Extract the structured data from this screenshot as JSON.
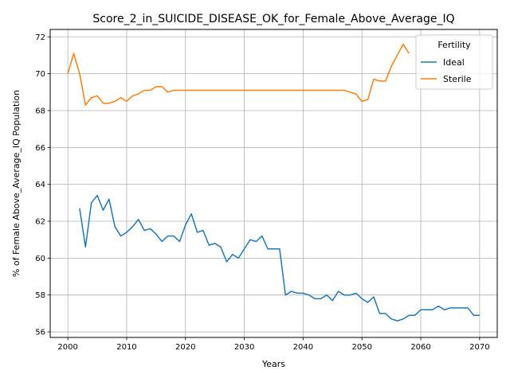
{
  "chart_data": {
    "type": "line",
    "title": "Score_2_in_SUICIDE_DISEASE_OK_for_Female_Above_Average_IQ",
    "xlabel": "Years",
    "ylabel": "% of Female Above_Average_IQ Population",
    "xlim": [
      1997,
      2073
    ],
    "ylim": [
      55.7,
      72.4
    ],
    "xticks": [
      2000,
      2010,
      2020,
      2030,
      2040,
      2050,
      2060,
      2070
    ],
    "yticks": [
      56,
      58,
      60,
      62,
      64,
      66,
      68,
      70,
      72
    ],
    "grid": true,
    "legend": {
      "title": "Fertility",
      "position": "top-right"
    },
    "series": [
      {
        "name": "Ideal",
        "color": "#1f77b4",
        "x": [
          2002,
          2003,
          2004,
          2005,
          2006,
          2007,
          2008,
          2009,
          2010,
          2011,
          2012,
          2013,
          2014,
          2015,
          2016,
          2017,
          2018,
          2019,
          2020,
          2021,
          2022,
          2023,
          2024,
          2025,
          2026,
          2027,
          2028,
          2029,
          2030,
          2031,
          2032,
          2033,
          2034,
          2035,
          2036,
          2037,
          2038,
          2039,
          2040,
          2041,
          2042,
          2043,
          2044,
          2045,
          2046,
          2047,
          2048,
          2049,
          2050,
          2051,
          2052,
          2053,
          2054,
          2055,
          2056,
          2057,
          2058,
          2059,
          2060,
          2061,
          2062,
          2063,
          2064,
          2065,
          2066,
          2067,
          2068,
          2069,
          2070
        ],
        "y": [
          62.7,
          60.6,
          63.0,
          63.4,
          62.6,
          63.2,
          61.7,
          61.2,
          61.4,
          61.7,
          62.1,
          61.5,
          61.6,
          61.3,
          60.9,
          61.2,
          61.2,
          60.9,
          61.8,
          62.4,
          61.4,
          61.5,
          60.7,
          60.8,
          60.6,
          59.8,
          60.2,
          60.0,
          60.5,
          61.0,
          60.9,
          61.2,
          60.5,
          60.5,
          60.5,
          58.0,
          58.2,
          58.1,
          58.1,
          58.0,
          57.8,
          57.8,
          58.0,
          57.7,
          58.2,
          58.0,
          58.0,
          58.1,
          57.8,
          57.6,
          57.9,
          57.0,
          57.0,
          56.7,
          56.6,
          56.7,
          56.9,
          56.9,
          57.2,
          57.2,
          57.2,
          57.4,
          57.2,
          57.3,
          57.3,
          57.3,
          57.3,
          56.9,
          56.9
        ]
      },
      {
        "name": "Sterile",
        "color": "#ff7f0e",
        "x": [
          2000,
          2001,
          2002,
          2003,
          2004,
          2005,
          2006,
          2007,
          2008,
          2009,
          2010,
          2011,
          2012,
          2013,
          2014,
          2015,
          2016,
          2017,
          2018,
          2019,
          2020,
          2021,
          2022,
          2023,
          2024,
          2025,
          2026,
          2027,
          2028,
          2029,
          2030,
          2031,
          2032,
          2033,
          2034,
          2035,
          2036,
          2037,
          2038,
          2039,
          2040,
          2041,
          2042,
          2043,
          2044,
          2045,
          2046,
          2047,
          2048,
          2049,
          2050,
          2051,
          2052,
          2053,
          2054,
          2055,
          2056,
          2057,
          2058
        ],
        "y": [
          70.0,
          71.1,
          70.0,
          68.3,
          68.7,
          68.8,
          68.4,
          68.4,
          68.5,
          68.7,
          68.5,
          68.8,
          68.9,
          69.1,
          69.1,
          69.3,
          69.3,
          69.0,
          69.1,
          69.1,
          69.1,
          69.1,
          69.1,
          69.1,
          69.1,
          69.1,
          69.1,
          69.1,
          69.1,
          69.1,
          69.1,
          69.1,
          69.1,
          69.1,
          69.1,
          69.1,
          69.1,
          69.1,
          69.1,
          69.1,
          69.1,
          69.1,
          69.1,
          69.1,
          69.1,
          69.1,
          69.1,
          69.1,
          69.0,
          68.9,
          68.5,
          68.6,
          69.7,
          69.6,
          69.6,
          70.4,
          71.0,
          71.6,
          71.1
        ]
      }
    ]
  }
}
